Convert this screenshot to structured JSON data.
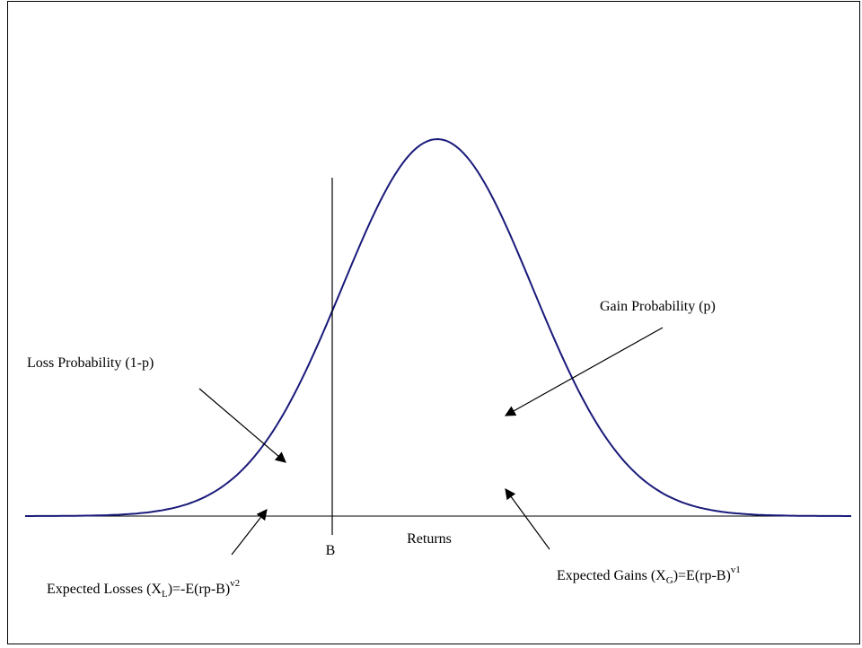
{
  "labels": {
    "loss_probability": "Loss Probability (1-p)",
    "gain_probability": "Gain Probability (p)",
    "benchmark": "B",
    "axis": "Returns",
    "expected_losses": [
      "Expected Losses (X",
      "L",
      ")=-E(rp-B)",
      "v2"
    ],
    "expected_gains": [
      "Expected Gains (X",
      "G",
      ")=E(rp-B)",
      "v1"
    ]
  }
}
